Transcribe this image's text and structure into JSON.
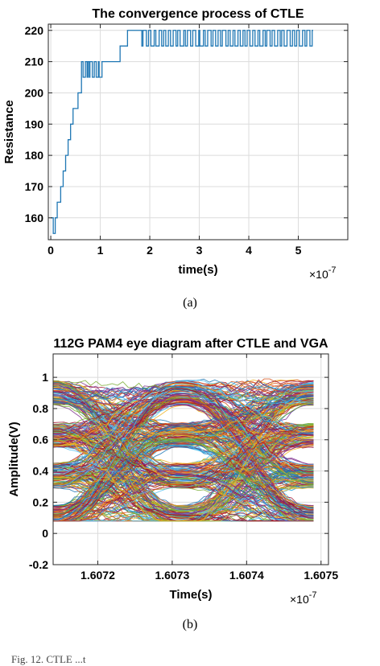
{
  "figure": {
    "subcaption_a": "(a)",
    "subcaption_b": "(b)",
    "caption_fragment": "Fig. 12.   CTLE                                                      ...t"
  },
  "colors": {
    "line": "#1f77b4",
    "eye_palette": [
      "#1f77b4",
      "#d95319",
      "#edb120",
      "#7e2f8e",
      "#77ac30",
      "#4dbeee",
      "#a2142f"
    ]
  },
  "chart_data": [
    {
      "type": "line",
      "title": "The convergence process of CTLE",
      "xlabel": "time(s)",
      "ylabel": "Resistance",
      "x_multiplier_label": "×10",
      "x_multiplier_exp": "-7",
      "xlim": [
        -0.05,
        6.0
      ],
      "ylim": [
        153,
        222
      ],
      "xticks": [
        0,
        1,
        2,
        3,
        4,
        5
      ],
      "yticks": [
        160,
        170,
        180,
        190,
        200,
        210,
        220
      ],
      "grid": true,
      "series": [
        {
          "steps": [
            [
              0.0,
              160
            ],
            [
              0.05,
              155
            ],
            [
              0.09,
              160
            ],
            [
              0.13,
              165
            ],
            [
              0.2,
              170
            ],
            [
              0.25,
              175
            ],
            [
              0.3,
              180
            ],
            [
              0.35,
              185
            ],
            [
              0.4,
              190
            ],
            [
              0.45,
              195
            ],
            [
              0.55,
              200
            ],
            [
              0.62,
              205
            ],
            [
              0.75,
              210
            ],
            [
              1.4,
              215
            ],
            [
              1.55,
              220
            ]
          ],
          "dither_ranges": [
            {
              "x0": 0.62,
              "x1": 1.05,
              "low": 205,
              "high": 210,
              "toggles": 12
            },
            {
              "x0": 1.05,
              "x1": 1.4,
              "low": 210,
              "high": 215,
              "toggles": 2
            },
            {
              "x0": 1.8,
              "x1": 5.3,
              "low": 215,
              "high": 220,
              "toggles": 70
            }
          ],
          "x_end": 5.3
        }
      ]
    },
    {
      "type": "line",
      "title": "112G PAM4 eye diagram after CTLE and VGA",
      "xlabel": "Time(s)",
      "ylabel": "Amplitude(V)",
      "x_multiplier_label": "×10",
      "x_multiplier_exp": "-7",
      "xlim": [
        1.60714,
        1.60751
      ],
      "ylim": [
        -0.2,
        1.15
      ],
      "xticks": [
        1.6072,
        1.6073,
        1.6074,
        1.6075
      ],
      "xtick_labels": [
        "1.6072",
        "1.6073",
        "1.6074",
        "1.6075"
      ],
      "yticks": [
        -0.2,
        0,
        0.2,
        0.4,
        0.6,
        0.8,
        1
      ],
      "ytick_labels": [
        "-0.2",
        "0",
        "0.2",
        "0.4",
        "0.6",
        "0.8",
        "1"
      ],
      "grid": true,
      "trace_x_range": [
        1.60714,
        1.60749
      ],
      "unit_intervals": [
        {
          "start": 1.60714,
          "end": 1.607313
        },
        {
          "start": 1.607313,
          "end": 1.60749
        }
      ],
      "envelope": {
        "top": 0.9,
        "bottom": 0.1,
        "crossing_top": 0.78,
        "crossing_bottom": 0.21,
        "max_overshoot": 0.99
      },
      "levels": [
        0.1,
        0.37,
        0.63,
        0.9
      ],
      "trace_count": 420
    }
  ]
}
